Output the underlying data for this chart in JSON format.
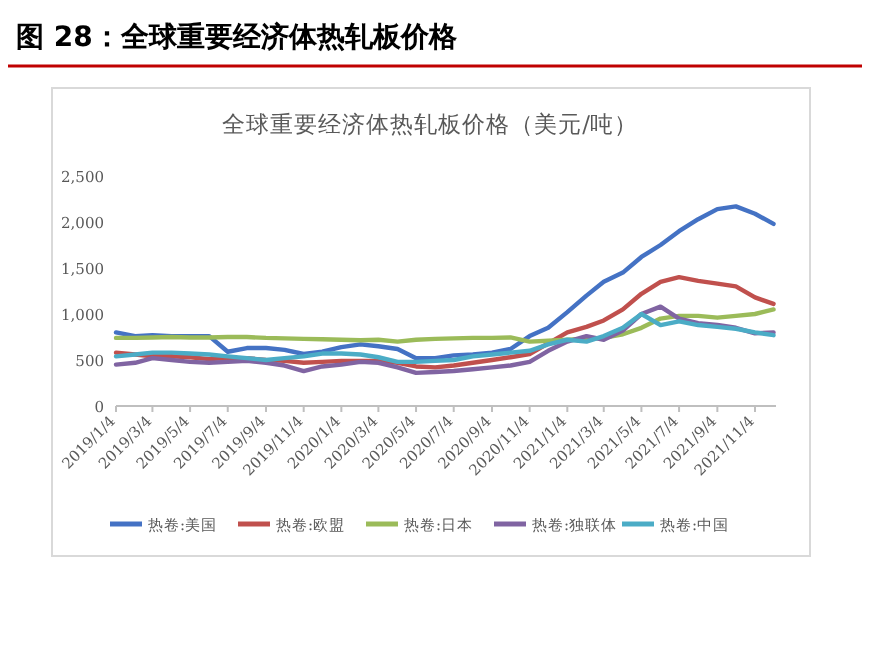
{
  "chart_data": {
    "type": "line",
    "title": "图 28：全球重要经济体热轧板价格",
    "subtitle": "全球重要经济体热轧板价格（美元/吨）",
    "x": [
      "2019-01-04",
      "2019-02-04",
      "2019-03-04",
      "2019-04-04",
      "2019-05-04",
      "2019-06-04",
      "2019-07-04",
      "2019-08-04",
      "2019-09-04",
      "2019-10-04",
      "2019-11-04",
      "2019-12-04",
      "2020-01-04",
      "2020-02-04",
      "2020-03-04",
      "2020-04-04",
      "2020-05-04",
      "2020-06-04",
      "2020-07-04",
      "2020-08-04",
      "2020-09-04",
      "2020-10-04",
      "2020-11-04",
      "2020-12-04",
      "2021-01-04",
      "2021-02-04",
      "2021-03-04",
      "2021-04-04",
      "2021-05-04",
      "2021-06-04",
      "2021-07-04",
      "2021-08-04",
      "2021-09-04",
      "2021-10-04",
      "2021-11-04",
      "2021-12-04"
    ],
    "series": [
      {
        "name": "热卷:美国",
        "color": "#4472c4",
        "values": [
          800,
          760,
          770,
          760,
          760,
          760,
          590,
          630,
          630,
          610,
          565,
          590,
          640,
          670,
          650,
          620,
          520,
          520,
          550,
          560,
          580,
          620,
          760,
          850,
          1020,
          1200,
          1350,
          1450,
          1620,
          1750,
          1900,
          2030,
          2140,
          2170,
          2090,
          1980
        ]
      },
      {
        "name": "热卷:欧盟",
        "color": "#c0504d",
        "values": [
          580,
          560,
          540,
          540,
          530,
          510,
          520,
          520,
          500,
          490,
          470,
          480,
          490,
          490,
          490,
          470,
          430,
          420,
          440,
          470,
          500,
          530,
          565,
          680,
          800,
          860,
          930,
          1050,
          1220,
          1350,
          1400,
          1360,
          1330,
          1300,
          1180,
          1110
        ]
      },
      {
        "name": "热卷:日本",
        "color": "#9bbb59",
        "values": [
          740,
          740,
          745,
          750,
          745,
          745,
          750,
          750,
          740,
          735,
          730,
          725,
          720,
          715,
          720,
          700,
          720,
          730,
          735,
          740,
          740,
          745,
          700,
          710,
          720,
          730,
          740,
          780,
          850,
          950,
          980,
          980,
          960,
          980,
          1000,
          1050
        ]
      },
      {
        "name": "热卷:独联体",
        "color": "#8064a2",
        "values": [
          450,
          470,
          520,
          500,
          480,
          470,
          480,
          490,
          470,
          440,
          380,
          430,
          450,
          480,
          470,
          420,
          360,
          370,
          380,
          400,
          420,
          440,
          480,
          600,
          700,
          760,
          720,
          820,
          1000,
          1080,
          950,
          900,
          880,
          850,
          790,
          800
        ]
      },
      {
        "name": "热卷:中国",
        "color": "#4bacc6",
        "values": [
          540,
          560,
          580,
          580,
          570,
          560,
          540,
          520,
          500,
          520,
          540,
          570,
          570,
          560,
          530,
          480,
          480,
          490,
          500,
          540,
          560,
          580,
          600,
          670,
          720,
          700,
          760,
          850,
          1000,
          880,
          920,
          880,
          860,
          840,
          800,
          770
        ]
      }
    ],
    "xlim": [
      "2019-01-04",
      "2021-12-08"
    ],
    "ylim": [
      0,
      2500
    ],
    "xticks": [
      {
        "value": "2019-01-04",
        "label": "2019/1/4"
      },
      {
        "value": "2019-03-04",
        "label": "2019/3/4"
      },
      {
        "value": "2019-05-04",
        "label": "2019/5/4"
      },
      {
        "value": "2019-07-04",
        "label": "2019/7/4"
      },
      {
        "value": "2019-09-04",
        "label": "2019/9/4"
      },
      {
        "value": "2019-11-04",
        "label": "2019/11/4"
      },
      {
        "value": "2020-01-04",
        "label": "2020/1/4"
      },
      {
        "value": "2020-03-04",
        "label": "2020/3/4"
      },
      {
        "value": "2020-05-04",
        "label": "2020/5/4"
      },
      {
        "value": "2020-07-04",
        "label": "2020/7/4"
      },
      {
        "value": "2020-09-04",
        "label": "2020/9/4"
      },
      {
        "value": "2020-11-04",
        "label": "2020/11/4"
      },
      {
        "value": "2021-01-04",
        "label": "2021/1/4"
      },
      {
        "value": "2021-03-04",
        "label": "2021/3/4"
      },
      {
        "value": "2021-05-04",
        "label": "2021/5/4"
      },
      {
        "value": "2021-07-04",
        "label": "2021/7/4"
      },
      {
        "value": "2021-09-04",
        "label": "2021/9/4"
      },
      {
        "value": "2021-11-04",
        "label": "2021/11/4"
      }
    ],
    "yticks": [
      0,
      {
        "value": 500,
        "label": "500"
      },
      {
        "value": 1000,
        "label": "1,000"
      },
      {
        "value": 1500,
        "label": "1,500"
      },
      {
        "value": 2000,
        "label": "2,000"
      },
      {
        "value": 2500,
        "label": "2,500"
      }
    ],
    "legend": "bottom"
  }
}
